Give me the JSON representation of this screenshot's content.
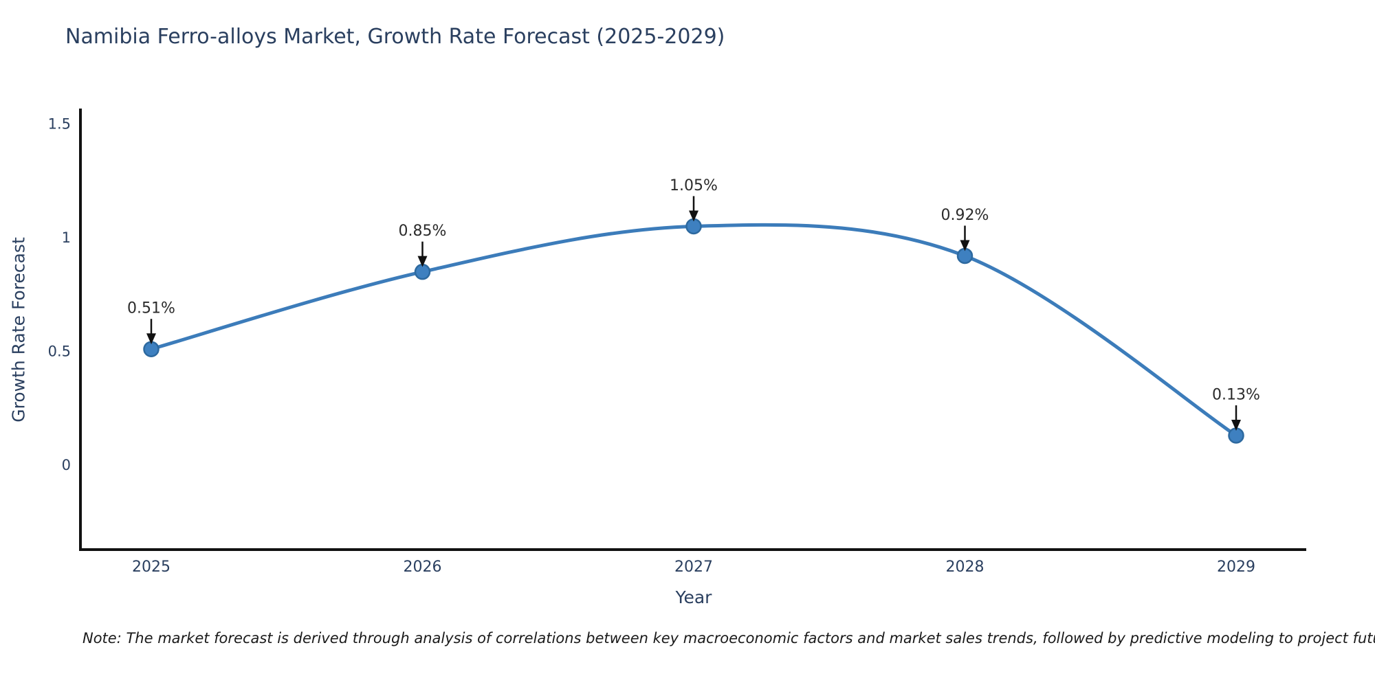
{
  "title": "Namibia Ferro-alloys Market, Growth Rate Forecast (2025-2029)",
  "note": "Note: The market forecast is derived through analysis of correlations between key macroeconomic factors and market sales trends, followed by predictive modeling to project future sales",
  "colors": {
    "title_text": "#2a3f5f",
    "tick_text": "#2a3f5f",
    "axis_line": "#111111",
    "series_line": "#3c7cba",
    "marker_fill": "#3e80c0",
    "marker_edge": "#2d699f",
    "annotation_text": "#2b2b2b",
    "annotation_arrow": "#111111",
    "note_text": "#1a1a1a"
  },
  "chart_data": {
    "type": "line",
    "line_shape": "spline",
    "title": "Namibia Ferro-alloys Market, Growth Rate Forecast (2025-2029)",
    "xlabel": "Year",
    "ylabel": "Growth Rate Forecast",
    "categories": [
      "2025",
      "2026",
      "2027",
      "2028",
      "2029"
    ],
    "values": [
      0.51,
      0.85,
      1.05,
      0.92,
      0.13
    ],
    "point_labels": [
      "0.51%",
      "0.85%",
      "1.05%",
      "0.92%",
      "0.13%"
    ],
    "ytick_values": [
      0,
      0.5,
      1,
      1.5
    ],
    "ytick_labels": [
      "0",
      "0.5",
      "1",
      "1.5"
    ],
    "ylim": [
      -0.37,
      1.56
    ],
    "grid": false,
    "legend": false,
    "markers": true,
    "annotations_with_arrows": true
  }
}
